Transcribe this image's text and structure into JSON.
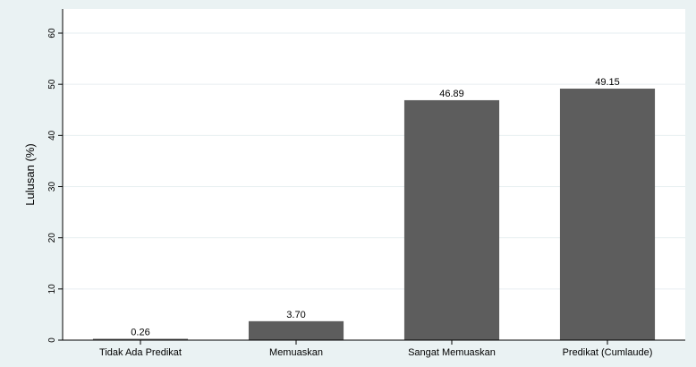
{
  "chart_data": {
    "type": "bar",
    "title": "",
    "xlabel": "",
    "ylabel": "Lulusan (%)",
    "categories": [
      "Tidak Ada Predikat",
      "Memuaskan",
      "Sangat Memuaskan",
      "Predikat (Cumlaude)"
    ],
    "values": [
      0.26,
      3.7,
      46.89,
      49.15
    ],
    "value_labels": [
      "0.26",
      "3.70",
      "46.89",
      "49.15"
    ],
    "ylim": [
      0,
      60
    ],
    "yticks": [
      0,
      10,
      20,
      30,
      40,
      50,
      60
    ],
    "grid": true,
    "legend": "none",
    "colors": {
      "outer_background": "#eaf2f3",
      "plot_background": "#ffffff",
      "bar": "#5d5d5d",
      "grid": "#e6eef0",
      "axis": "#000000",
      "text": "#000000"
    }
  }
}
